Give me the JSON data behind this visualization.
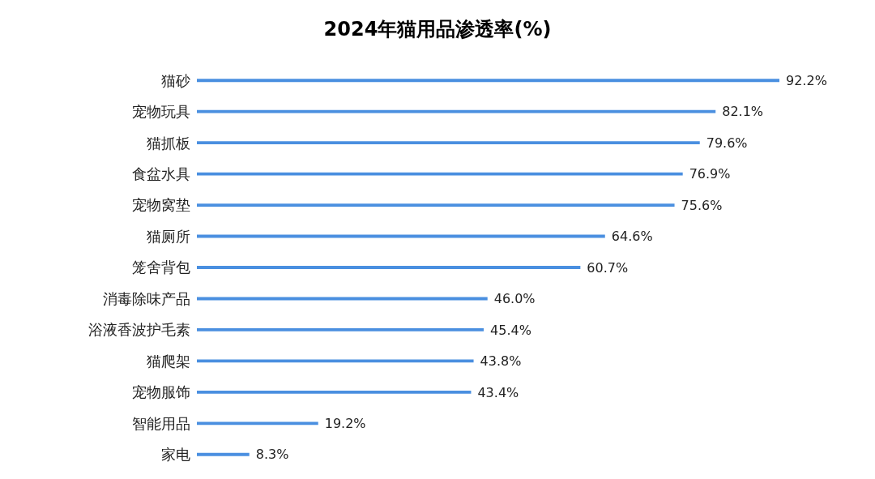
{
  "chart_data": {
    "type": "bar",
    "orientation": "horizontal",
    "title": "2024年猫用品渗透率(%)",
    "categories": [
      "猫砂",
      "宠物玩具",
      "猫抓板",
      "食盆水具",
      "宠物窝垫",
      "猫厕所",
      "笼舍背包",
      "消毒除味产品",
      "浴液香波护毛素",
      "猫爬架",
      "宠物服饰",
      "智能用品",
      "家电"
    ],
    "values": [
      92.2,
      82.1,
      79.6,
      76.9,
      75.6,
      64.6,
      60.7,
      46.0,
      45.4,
      43.8,
      43.4,
      19.2,
      8.3
    ],
    "value_labels": [
      "92.2%",
      "82.1%",
      "79.6%",
      "76.9%",
      "75.6%",
      "64.6%",
      "60.7%",
      "46.0%",
      "45.4%",
      "43.8%",
      "43.4%",
      "19.2%",
      "8.3%"
    ],
    "color": "#4a8fe0",
    "grid": false,
    "legend": false
  }
}
